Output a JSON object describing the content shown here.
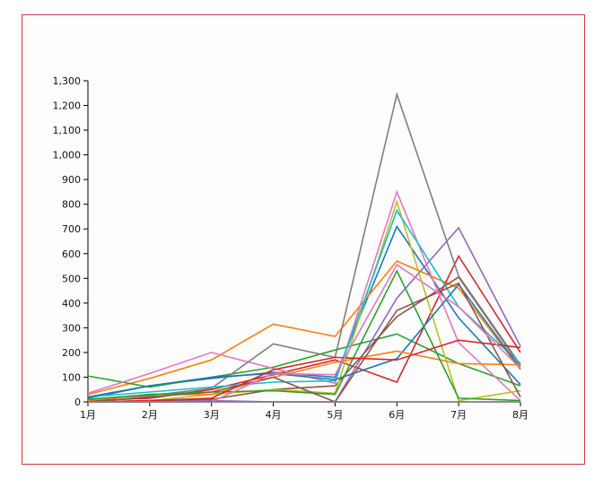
{
  "chart_data": {
    "type": "line",
    "title": "",
    "xlabel": "",
    "ylabel": "",
    "categories": [
      "1月",
      "2月",
      "3月",
      "4月",
      "5月",
      "6月",
      "7月",
      "8月"
    ],
    "ylim": [
      0,
      1300
    ],
    "yticks": [
      0,
      100,
      200,
      300,
      400,
      500,
      600,
      700,
      800,
      900,
      1000,
      1100,
      1200,
      1300
    ],
    "ytick_labels": [
      "0",
      "100",
      "200",
      "300",
      "400",
      "500",
      "600",
      "700",
      "800",
      "900",
      "1,000",
      "1,100",
      "1,200",
      "1,300"
    ],
    "grid": false,
    "legend": "none",
    "series": [
      {
        "color": "#1f77b4",
        "values": [
          15,
          65,
          95,
          120,
          100,
          710,
          340,
          70
        ]
      },
      {
        "color": "#ff7f0e",
        "values": [
          30,
          95,
          170,
          315,
          265,
          570,
          460,
          130
        ]
      },
      {
        "color": "#2ca02c",
        "values": [
          105,
          60,
          100,
          140,
          210,
          275,
          155,
          65
        ]
      },
      {
        "color": "#d62728",
        "values": [
          5,
          15,
          50,
          110,
          170,
          80,
          590,
          200
        ]
      },
      {
        "color": "#9467bd",
        "values": [
          0,
          0,
          0,
          0,
          0,
          420,
          705,
          225
        ]
      },
      {
        "color": "#8c564b",
        "values": [
          0,
          0,
          10,
          50,
          65,
          345,
          505,
          145
        ]
      },
      {
        "color": "#e377c2",
        "values": [
          35,
          115,
          200,
          135,
          75,
          850,
          240,
          5
        ]
      },
      {
        "color": "#7f7f7f",
        "values": [
          10,
          25,
          55,
          235,
          180,
          1245,
          510,
          150
        ]
      },
      {
        "color": "#bcbd22",
        "values": [
          0,
          5,
          30,
          50,
          35,
          810,
          5,
          45
        ]
      },
      {
        "color": "#17becf",
        "values": [
          20,
          40,
          60,
          80,
          85,
          775,
          385,
          155
        ]
      },
      {
        "color": "#1f77b4",
        "values": [
          20,
          65,
          100,
          115,
          90,
          175,
          475,
          135
        ]
      },
      {
        "color": "#ff7f0e",
        "values": [
          5,
          30,
          30,
          100,
          160,
          205,
          155,
          150
        ]
      },
      {
        "color": "#2ca02c",
        "values": [
          10,
          30,
          40,
          45,
          30,
          530,
          15,
          5
        ]
      },
      {
        "color": "#d62728",
        "values": [
          0,
          5,
          15,
          130,
          180,
          170,
          250,
          220
        ]
      },
      {
        "color": "#9467bd",
        "values": [
          0,
          0,
          5,
          0,
          0,
          0,
          0,
          0
        ]
      },
      {
        "color": "#8c564b",
        "values": [
          0,
          20,
          40,
          100,
          0,
          370,
          480,
          20
        ]
      },
      {
        "color": "#e377c2",
        "values": [
          0,
          0,
          0,
          115,
          110,
          555,
          385,
          135
        ]
      },
      {
        "color": "#7f7f7f",
        "values": [
          0,
          0,
          0,
          0,
          0,
          0,
          0,
          0
        ]
      }
    ]
  }
}
